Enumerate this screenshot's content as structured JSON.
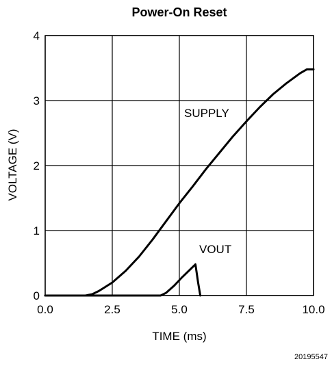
{
  "chart_data": {
    "type": "line",
    "title": "Power-On Reset",
    "xlabel": "TIME (ms)",
    "ylabel": "VOLTAGE (V)",
    "xlim": [
      0,
      10
    ],
    "ylim": [
      0,
      4
    ],
    "x_ticks": [
      "0.0",
      "2.5",
      "5.0",
      "7.5",
      "10.0"
    ],
    "y_ticks": [
      "0",
      "1",
      "2",
      "3",
      "4"
    ],
    "grid": true,
    "legend": "none",
    "line_color": "#000000",
    "series": [
      {
        "name": "SUPPLY",
        "points": [
          [
            0,
            0
          ],
          [
            1.5,
            0
          ],
          [
            1.75,
            0.02
          ],
          [
            2.0,
            0.07
          ],
          [
            2.5,
            0.2
          ],
          [
            3.0,
            0.38
          ],
          [
            3.5,
            0.6
          ],
          [
            4.0,
            0.86
          ],
          [
            4.5,
            1.14
          ],
          [
            5.0,
            1.42
          ],
          [
            5.5,
            1.68
          ],
          [
            6.0,
            1.95
          ],
          [
            6.5,
            2.2
          ],
          [
            7.0,
            2.45
          ],
          [
            7.5,
            2.68
          ],
          [
            8.0,
            2.9
          ],
          [
            8.5,
            3.1
          ],
          [
            9.0,
            3.27
          ],
          [
            9.5,
            3.42
          ],
          [
            9.75,
            3.48
          ],
          [
            10.0,
            3.48
          ]
        ]
      },
      {
        "name": "VOUT",
        "points": [
          [
            0,
            0
          ],
          [
            4.3,
            0
          ],
          [
            4.5,
            0.04
          ],
          [
            4.8,
            0.15
          ],
          [
            5.1,
            0.28
          ],
          [
            5.4,
            0.4
          ],
          [
            5.6,
            0.48
          ],
          [
            5.7,
            0.2
          ],
          [
            5.78,
            0.0
          ]
        ]
      }
    ],
    "annotations": [
      "SUPPLY",
      "VOUT"
    ],
    "figure_code": "20195547"
  }
}
